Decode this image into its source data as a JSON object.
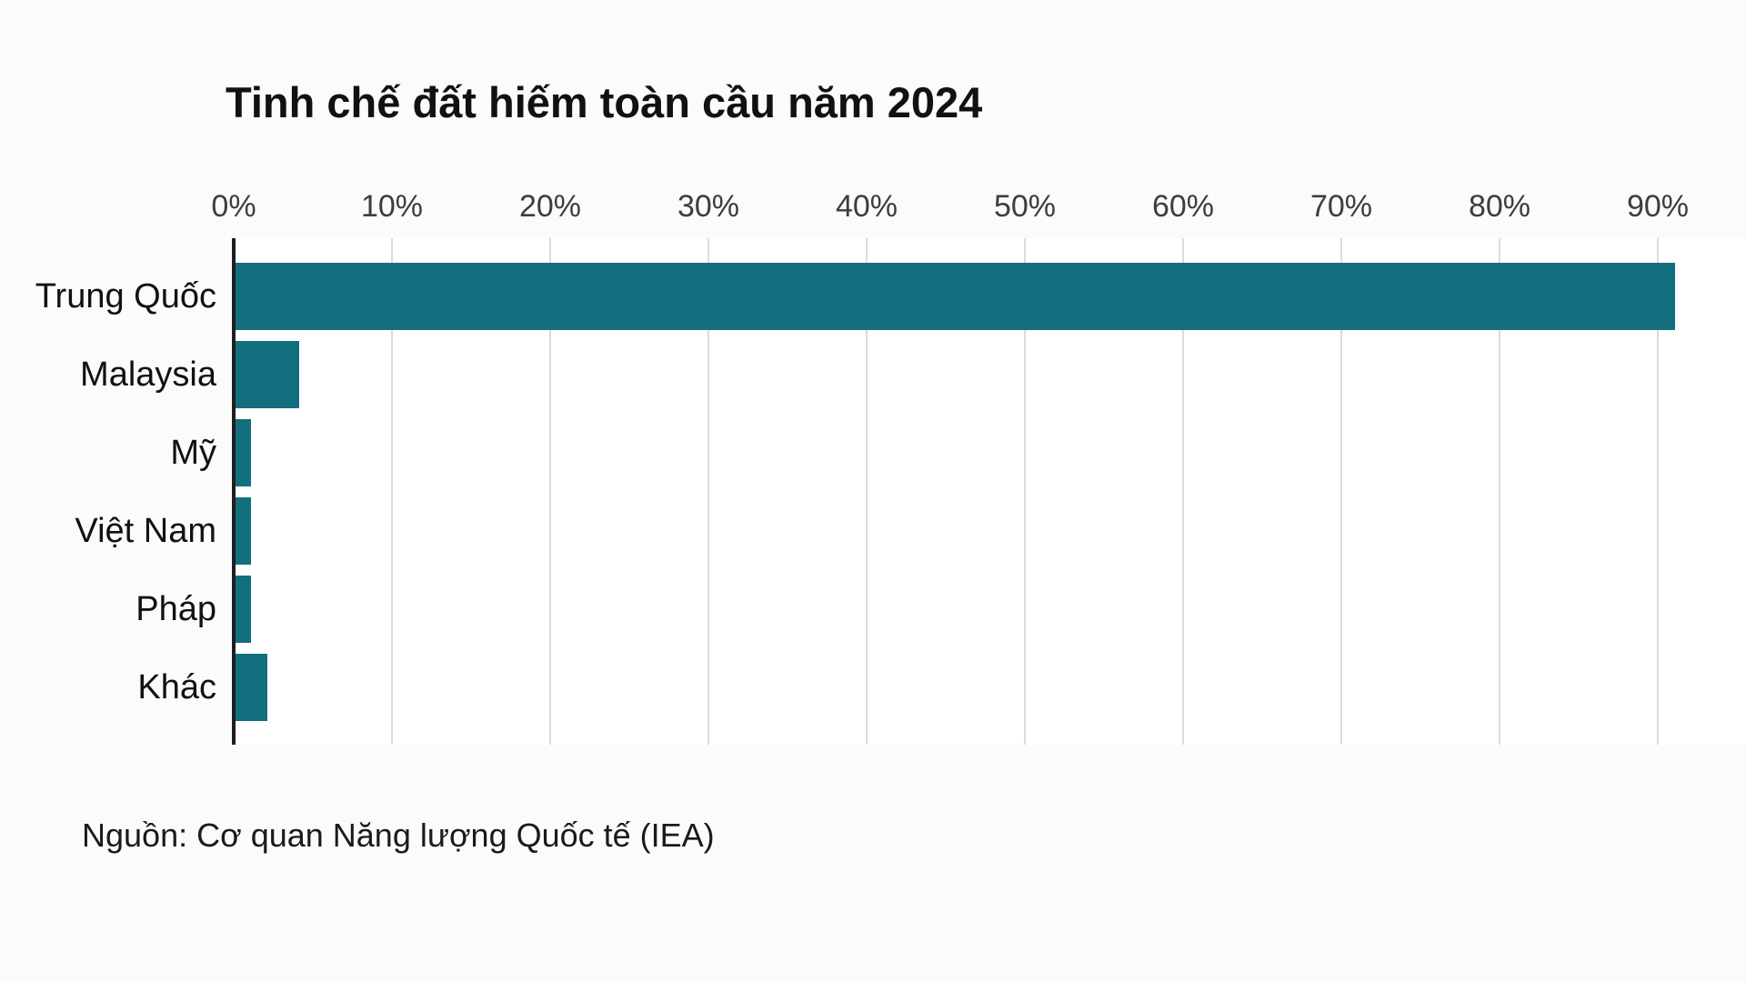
{
  "title": "Tinh chế đất hiếm toàn cầu năm 2024",
  "source": "Nguồn: Cơ quan Năng lượng Quốc tế (IEA)",
  "colors": {
    "bar": "#136F7D",
    "axis": "#1f1f1f",
    "gridline": "#dcdcdc",
    "tick_text": "#3d3d3d",
    "text": "#111111",
    "canvas": "#fbfbfb",
    "plot_background": "#ffffff"
  },
  "chart_data": {
    "type": "bar",
    "orientation": "horizontal",
    "title": "Tinh chế đất hiếm toàn cầu năm 2024",
    "categories": [
      "Trung Quốc",
      "Malaysia",
      "Mỹ",
      "Việt Nam",
      "Pháp",
      "Khác"
    ],
    "values": [
      91,
      4,
      1,
      1,
      1,
      2
    ],
    "unit": "%",
    "xlabel": "",
    "ylabel": "",
    "xlim": [
      0,
      95.6
    ],
    "x_tick_values": [
      0,
      10,
      20,
      30,
      40,
      50,
      60,
      70,
      80,
      90
    ],
    "x_tick_labels": [
      "0%",
      "10%",
      "20%",
      "30%",
      "40%",
      "50%",
      "60%",
      "70%",
      "80%",
      "90%"
    ],
    "grid": true,
    "legend": false,
    "source": "Nguồn: Cơ quan Năng lượng Quốc tế (IEA)"
  }
}
